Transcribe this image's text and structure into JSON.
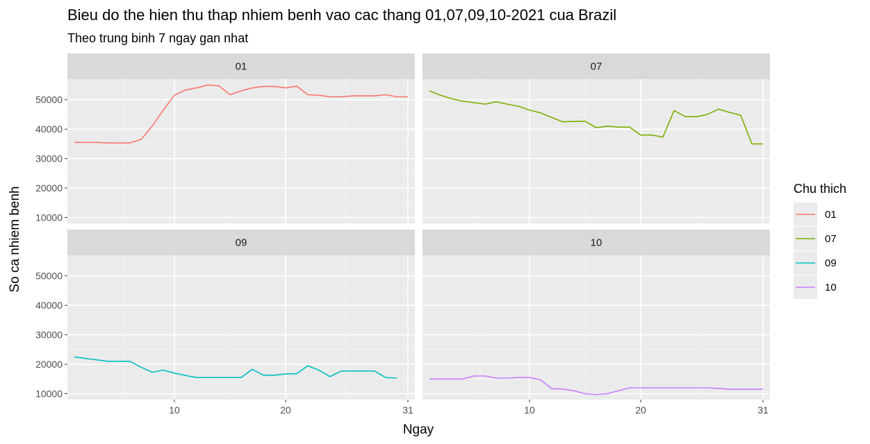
{
  "title": "Bieu do the hien thu thap nhiem benh vao cac thang 01,07,09,10-2021 cua Brazil",
  "subtitle": "Theo trung binh 7 ngay gan nhat",
  "chart_data": {
    "type": "line",
    "facet": "grid 2x2",
    "xlabel": "Ngay",
    "ylabel": "So ca nhiem benh",
    "xlim": [
      1,
      31
    ],
    "ylim": [
      8000,
      57000
    ],
    "x_ticks": [
      10,
      20,
      31
    ],
    "y_ticks": [
      10000,
      20000,
      30000,
      40000,
      50000
    ],
    "grid": true,
    "legend": {
      "title": "Chu thich",
      "position": "right"
    },
    "series": [
      {
        "name": "01",
        "color": "#F8766D",
        "x": [
          1,
          2,
          3,
          4,
          5,
          6,
          7,
          8,
          9,
          10,
          11,
          12,
          13,
          14,
          15,
          16,
          17,
          18,
          19,
          20,
          21,
          22,
          23,
          24,
          25,
          26,
          27,
          28,
          29,
          30,
          31
        ],
        "values": [
          35500,
          35500,
          35500,
          35300,
          35300,
          35300,
          36500,
          41000,
          46500,
          51500,
          53300,
          54000,
          55000,
          54700,
          51700,
          53000,
          54000,
          54500,
          54500,
          54000,
          54600,
          51700,
          51500,
          51000,
          51000,
          51300,
          51300,
          51300,
          51700,
          51000,
          51000
        ]
      },
      {
        "name": "07",
        "color": "#7CAE00",
        "x": [
          1,
          2,
          3,
          4,
          5,
          6,
          7,
          8,
          9,
          10,
          11,
          12,
          13,
          14,
          15,
          16,
          17,
          18,
          19,
          20,
          21,
          22,
          23,
          24,
          25,
          26,
          27,
          28,
          29,
          30,
          31
        ],
        "values": [
          53000,
          51500,
          50300,
          49500,
          49000,
          48500,
          49300,
          48500,
          47800,
          46500,
          45500,
          44000,
          42500,
          42600,
          42700,
          40500,
          41000,
          40700,
          40700,
          38000,
          38000,
          37300,
          46300,
          44300,
          44200,
          45000,
          46800,
          45700,
          44700,
          35000,
          35000
        ]
      },
      {
        "name": "09",
        "color": "#00BFC4",
        "x": [
          1,
          2,
          3,
          4,
          5,
          6,
          7,
          8,
          9,
          10,
          11,
          12,
          13,
          14,
          15,
          16,
          17,
          18,
          19,
          20,
          21,
          22,
          23,
          24,
          25,
          26,
          27,
          28,
          29,
          30
        ],
        "values": [
          22500,
          22000,
          21500,
          21000,
          21000,
          21000,
          19000,
          17300,
          18000,
          17000,
          16200,
          15500,
          15500,
          15500,
          15500,
          15500,
          18300,
          16300,
          16300,
          16700,
          16800,
          19500,
          18000,
          15800,
          17700,
          17700,
          17700,
          17700,
          15500,
          15300
        ]
      },
      {
        "name": "10",
        "color": "#C77CFF",
        "x": [
          1,
          2,
          3,
          4,
          5,
          6,
          7,
          8,
          9,
          10,
          11,
          12,
          13,
          14,
          15,
          16,
          17,
          18,
          19,
          20,
          21,
          22,
          23,
          24,
          25,
          26,
          27,
          28,
          29,
          30,
          31
        ],
        "values": [
          15000,
          15000,
          15000,
          15000,
          16000,
          16000,
          15300,
          15300,
          15500,
          15500,
          14700,
          11700,
          11600,
          11000,
          10000,
          9700,
          10000,
          11000,
          12000,
          12000,
          12000,
          12000,
          12000,
          12000,
          12000,
          12000,
          11800,
          11500,
          11500,
          11500,
          11500
        ]
      }
    ]
  }
}
